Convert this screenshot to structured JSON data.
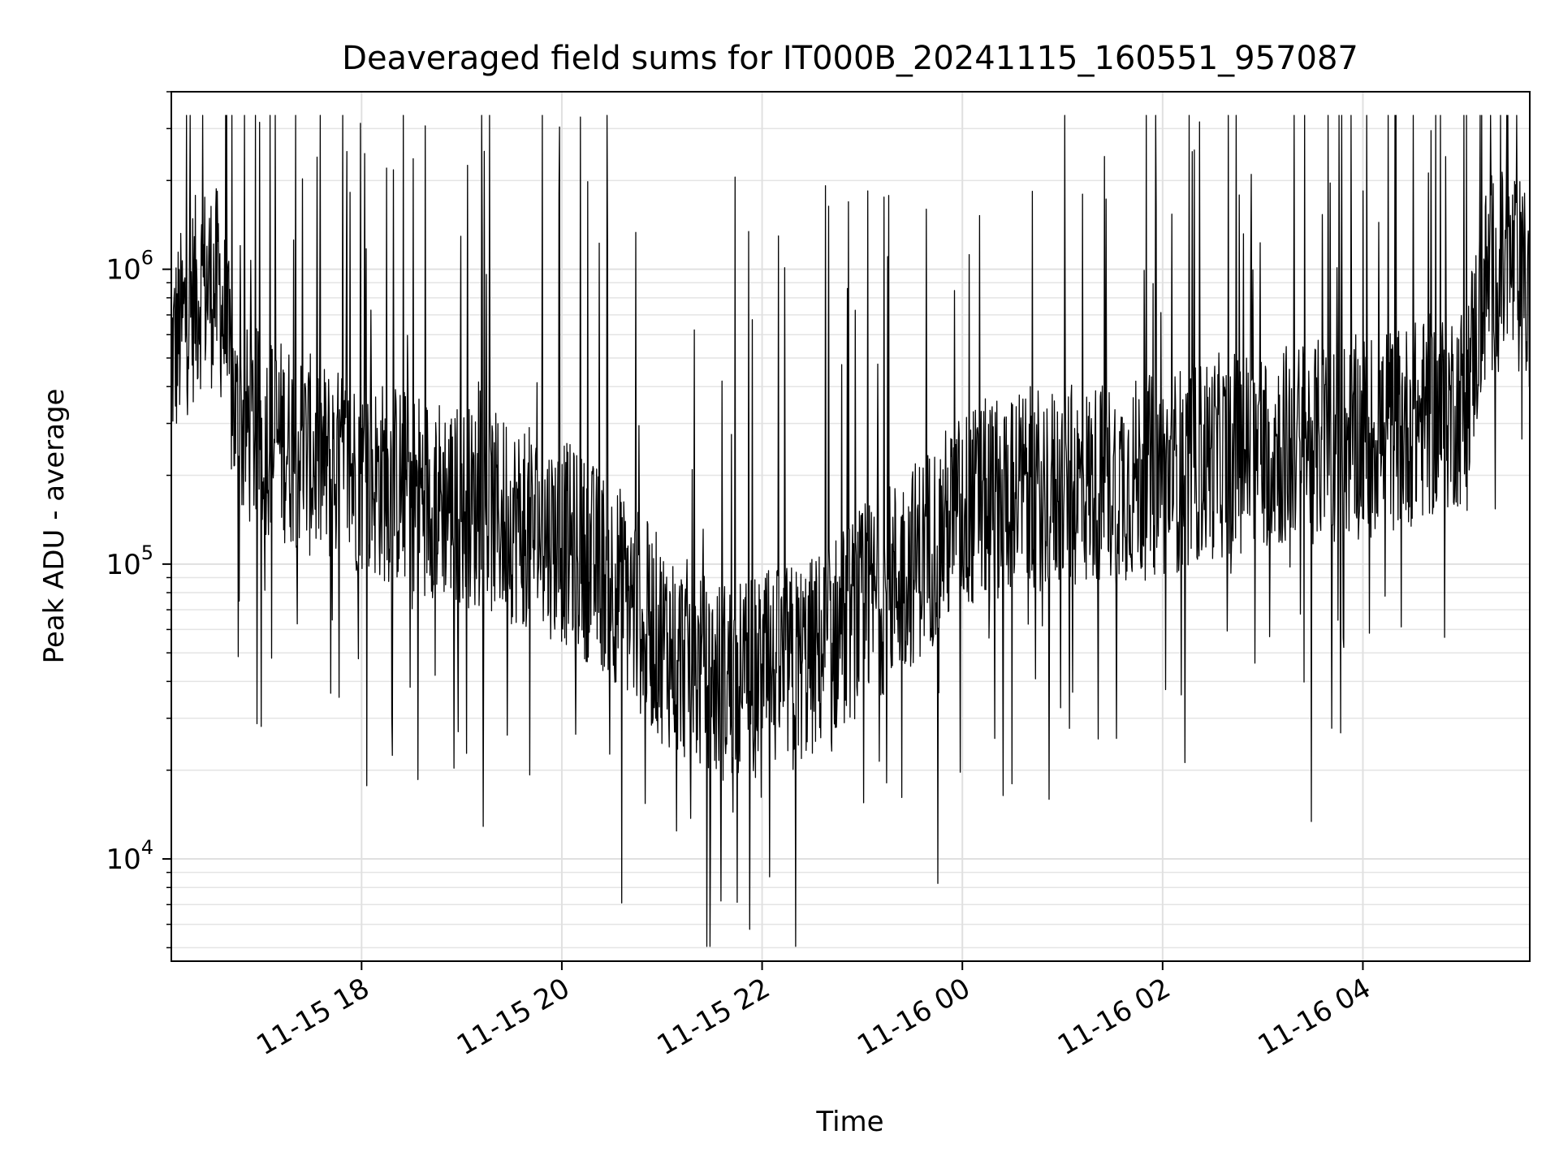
{
  "chart_data": {
    "type": "line",
    "title": "Deaveraged field sums for IT000B_20241115_160551_957087",
    "xlabel": "Time",
    "ylabel": "Peak ADU - average",
    "yscale": "log",
    "ylim": [
      4500,
      4000000
    ],
    "xlim": [
      "2024-11-15 16:06",
      "2024-11-16 05:40"
    ],
    "x_ticks": [
      {
        "value": "2024-11-15 18:00",
        "label": "11-15 18"
      },
      {
        "value": "2024-11-15 20:00",
        "label": "11-15 20"
      },
      {
        "value": "2024-11-15 22:00",
        "label": "11-15 22"
      },
      {
        "value": "2024-11-16 00:00",
        "label": "11-16 00"
      },
      {
        "value": "2024-11-16 02:00",
        "label": "11-16 02"
      },
      {
        "value": "2024-11-16 04:00",
        "label": "11-16 04"
      }
    ],
    "y_ticks": [
      {
        "value": 10000,
        "base": "10",
        "exp": "4"
      },
      {
        "value": 100000,
        "base": "10",
        "exp": "5"
      },
      {
        "value": 1000000,
        "base": "10",
        "exp": "6"
      }
    ],
    "grid": true,
    "line_color": "#000000",
    "series": [
      {
        "x": [
          "2024-11-15 16:06",
          "2024-11-15 16:15",
          "2024-11-15 16:25",
          "2024-11-15 16:35",
          "2024-11-15 16:45",
          "2024-11-15 17:00",
          "2024-11-15 17:15",
          "2024-11-15 17:30",
          "2024-11-15 17:45",
          "2024-11-15 18:00",
          "2024-11-15 18:30",
          "2024-11-15 19:00",
          "2024-11-15 19:30",
          "2024-11-15 20:00",
          "2024-11-15 20:30",
          "2024-11-15 21:00",
          "2024-11-15 21:30",
          "2024-11-15 22:00",
          "2024-11-15 22:30",
          "2024-11-15 23:00",
          "2024-11-15 23:30",
          "2024-11-16 00:00",
          "2024-11-16 00:30",
          "2024-11-16 01:00",
          "2024-11-16 01:30",
          "2024-11-16 02:00",
          "2024-11-16 02:30",
          "2024-11-16 03:00",
          "2024-11-16 03:30",
          "2024-11-16 04:00",
          "2024-11-16 04:30",
          "2024-11-16 05:00",
          "2024-11-16 05:15",
          "2024-11-16 05:30",
          "2024-11-16 05:40"
        ],
        "y": [
          500000,
          700000,
          900000,
          850000,
          300000,
          280000,
          260000,
          230000,
          210000,
          200000,
          180000,
          160000,
          140000,
          120000,
          90000,
          55000,
          40000,
          42000,
          48000,
          70000,
          100000,
          150000,
          180000,
          180000,
          190000,
          200000,
          230000,
          250000,
          260000,
          270000,
          300000,
          350000,
          950000,
          1000000,
          800000
        ]
      }
    ]
  }
}
